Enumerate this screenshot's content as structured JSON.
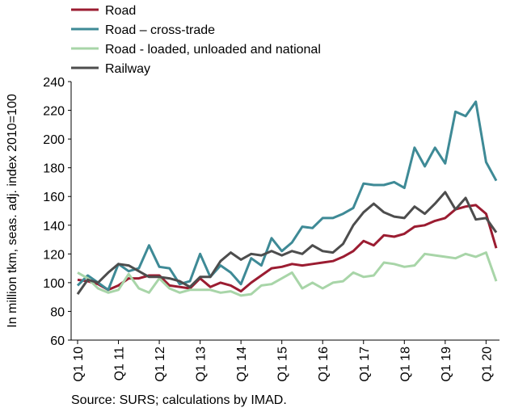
{
  "chart_data": {
    "type": "line",
    "y_label": "In million tkm, seas. adj. index 2010=100",
    "source": "Source: SURS; calculations by IMAD.",
    "categories": [
      "Q1 10",
      null,
      null,
      null,
      "Q1 11",
      null,
      null,
      null,
      "Q1 12",
      null,
      null,
      null,
      "Q1 13",
      null,
      null,
      null,
      "Q1 14",
      null,
      null,
      null,
      "Q1 15",
      null,
      null,
      null,
      "Q1 16",
      null,
      null,
      null,
      "Q1 17",
      null,
      null,
      null,
      "Q1 18",
      null,
      null,
      null,
      "Q1 19",
      null,
      null,
      null,
      "Q1 20",
      null
    ],
    "series": [
      {
        "name": "Road",
        "color": "#9b1c31",
        "values": [
          102,
          101,
          99,
          95,
          98,
          103,
          103,
          105,
          105,
          98,
          97,
          96,
          103,
          97,
          100,
          98,
          94,
          100,
          105,
          110,
          111,
          113,
          112,
          113,
          114,
          115,
          118,
          122,
          129,
          126,
          133,
          132,
          134,
          139,
          140,
          143,
          145,
          151,
          153,
          154,
          148,
          124
        ]
      },
      {
        "name": "Road – cross-trade",
        "color": "#3e8a96",
        "values": [
          98,
          105,
          100,
          95,
          113,
          108,
          110,
          126,
          111,
          110,
          99,
          101,
          120,
          104,
          112,
          107,
          99,
          117,
          112,
          131,
          122,
          128,
          139,
          138,
          145,
          145,
          148,
          152,
          169,
          168,
          168,
          170,
          166,
          194,
          181,
          194,
          183,
          219,
          216,
          226,
          184,
          171
        ]
      },
      {
        "name": "Road - loaded, unloaded and national",
        "color": "#a8d5a8",
        "values": [
          107,
          103,
          96,
          93,
          95,
          106,
          96,
          93,
          103,
          96,
          93,
          95,
          95,
          95,
          93,
          94,
          91,
          92,
          98,
          99,
          103,
          107,
          96,
          100,
          96,
          100,
          101,
          107,
          104,
          105,
          114,
          113,
          111,
          112,
          120,
          119,
          118,
          117,
          120,
          118,
          121,
          101
        ]
      },
      {
        "name": "Railway",
        "color": "#4d4d4d",
        "values": [
          92,
          102,
          100,
          107,
          113,
          112,
          108,
          104,
          104,
          103,
          101,
          97,
          104,
          104,
          115,
          121,
          116,
          120,
          119,
          122,
          119,
          122,
          120,
          126,
          122,
          121,
          127,
          140,
          149,
          155,
          149,
          146,
          145,
          153,
          148,
          155,
          163,
          151,
          159,
          144,
          145,
          135
        ]
      }
    ],
    "ylim": [
      60,
      240
    ],
    "yticks": [
      60,
      80,
      100,
      120,
      140,
      160,
      180,
      200,
      220,
      240
    ]
  }
}
